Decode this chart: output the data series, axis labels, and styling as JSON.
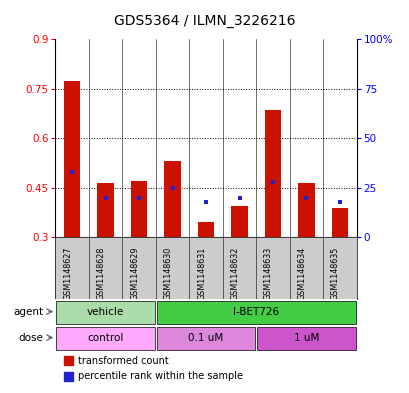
{
  "title": "GDS5364 / ILMN_3226216",
  "samples": [
    "GSM1148627",
    "GSM1148628",
    "GSM1148629",
    "GSM1148630",
    "GSM1148631",
    "GSM1148632",
    "GSM1148633",
    "GSM1148634",
    "GSM1148635"
  ],
  "red_bar_tops": [
    0.775,
    0.465,
    0.47,
    0.53,
    0.345,
    0.395,
    0.685,
    0.465,
    0.39
  ],
  "blue_dot_pct": [
    33,
    20,
    20,
    25,
    18,
    20,
    28,
    20,
    18
  ],
  "bar_base": 0.3,
  "ylim": [
    0.3,
    0.9
  ],
  "yticks_left": [
    0.3,
    0.45,
    0.6,
    0.75,
    0.9
  ],
  "yticks_right": [
    0,
    25,
    50,
    75,
    100
  ],
  "bar_color": "#cc1100",
  "dot_color": "#2222cc",
  "agent_labels": [
    {
      "text": "vehicle",
      "start": 0,
      "end": 3,
      "color": "#aaddaa"
    },
    {
      "text": "I-BET726",
      "start": 3,
      "end": 9,
      "color": "#44cc44"
    }
  ],
  "dose_labels": [
    {
      "text": "control",
      "start": 0,
      "end": 3,
      "color": "#ffaaff"
    },
    {
      "text": "0.1 uM",
      "start": 3,
      "end": 6,
      "color": "#dd88dd"
    },
    {
      "text": "1 uM",
      "start": 6,
      "end": 9,
      "color": "#cc55cc"
    }
  ],
  "legend_red": "transformed count",
  "legend_blue": "percentile rank within the sample",
  "sample_label_bg": "#cccccc",
  "bg_color": "#ffffff",
  "grid_dotted_at": [
    0.45,
    0.6,
    0.75
  ],
  "title_fontsize": 10,
  "tick_fontsize": 7.5,
  "bar_width": 0.5
}
